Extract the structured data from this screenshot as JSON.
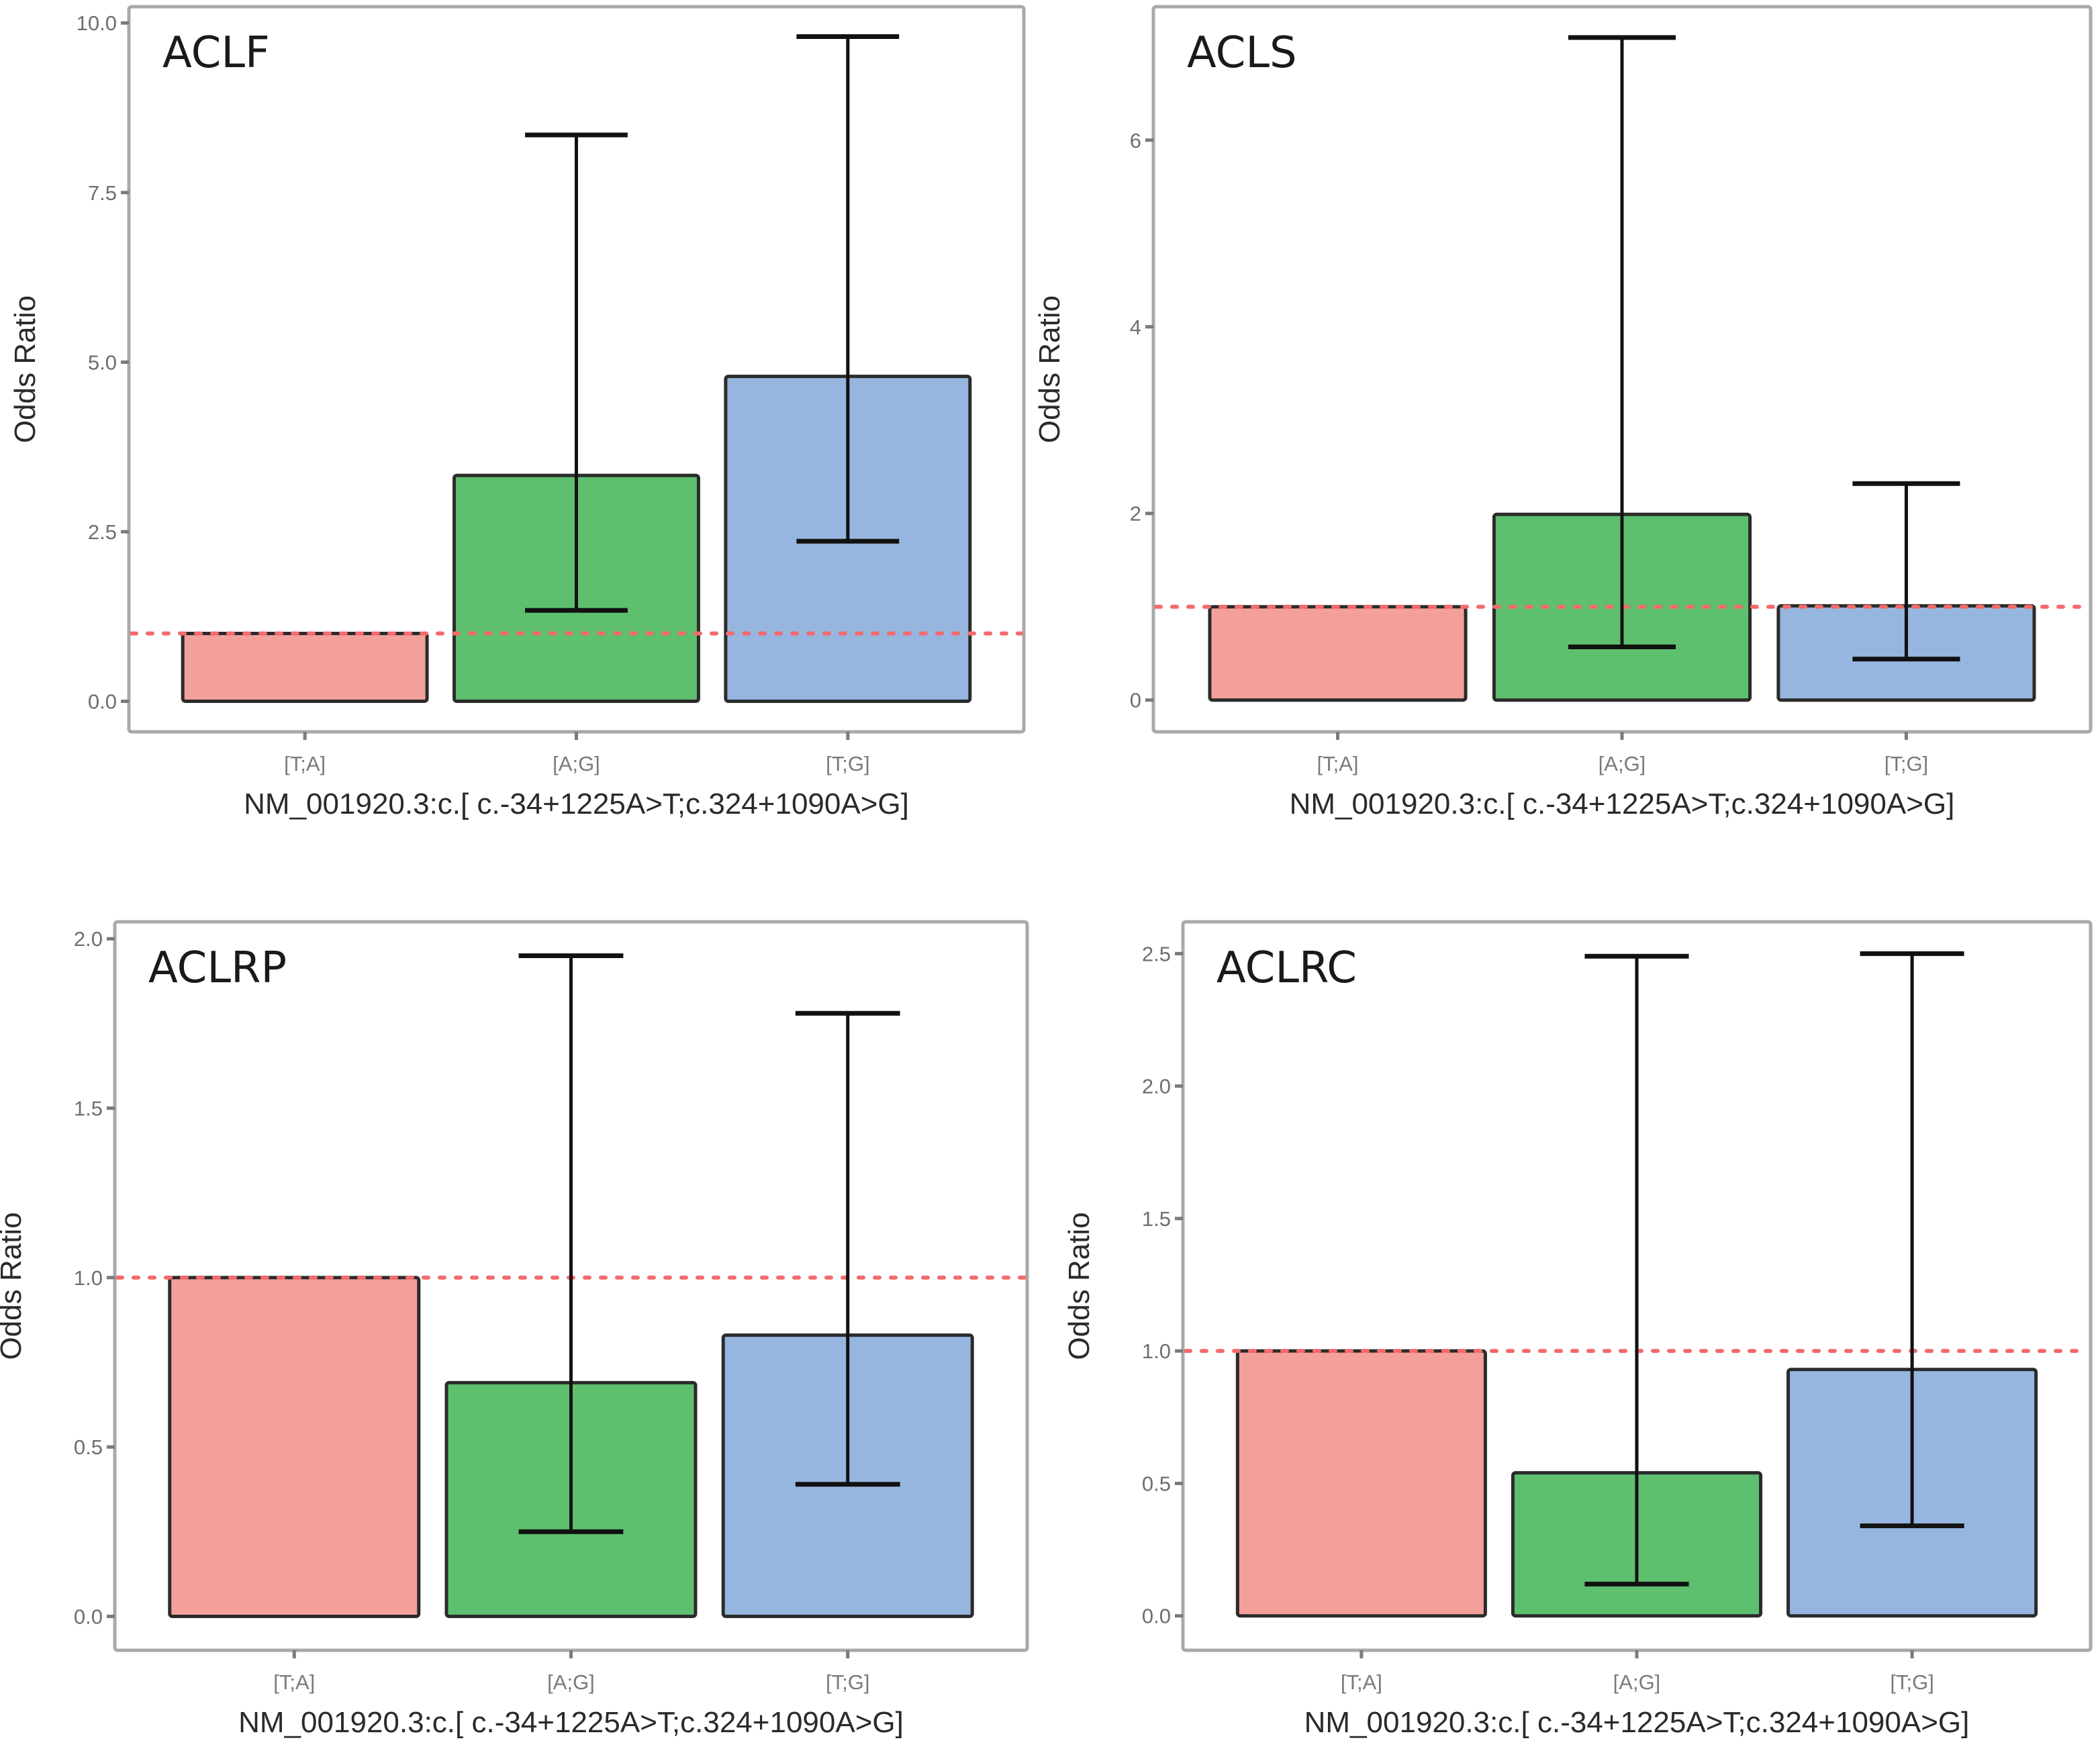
{
  "figure": {
    "reference_line_value": 1.0,
    "reference_line_color": "#f46b6b",
    "category_colors": [
      "#f4a09a",
      "#5ebf6f",
      "#96b6e0"
    ]
  },
  "chart_data": [
    {
      "type": "bar",
      "title": "ACLF",
      "xlabel": "NM_001920.3:c.[ c.-34+1225A>T;c.324+1090A>G]",
      "ylabel": "Odds Ratio",
      "categories": [
        "[T;A]",
        "[A;G]",
        "[T;G]"
      ],
      "values": [
        1.0,
        3.33,
        4.79
      ],
      "ci_lower": [
        null,
        1.34,
        2.36
      ],
      "ci_upper": [
        null,
        8.35,
        9.8
      ],
      "yticks": [
        0.0,
        2.5,
        5.0,
        7.5,
        10.0
      ],
      "ytick_labels": [
        "0.0",
        "2.5",
        "5.0",
        "7.5",
        "10.0"
      ],
      "ylim": [
        -0.45,
        10.24
      ],
      "reference_line": 1.0,
      "grid": false
    },
    {
      "type": "bar",
      "title": "ACLS",
      "xlabel": "NM_001920.3:c.[ c.-34+1225A>T;c.324+1090A>G]",
      "ylabel": "Odds Ratio",
      "categories": [
        "[T;A]",
        "[A;G]",
        "[T;G]"
      ],
      "values": [
        1.0,
        1.99,
        1.01
      ],
      "ci_lower": [
        null,
        0.57,
        0.44
      ],
      "ci_upper": [
        null,
        7.1,
        2.32
      ],
      "yticks": [
        0,
        2,
        4,
        6
      ],
      "ytick_labels": [
        "0",
        "2",
        "4",
        "6"
      ],
      "ylim": [
        -0.34,
        7.43
      ],
      "reference_line": 1.0,
      "grid": false
    },
    {
      "type": "bar",
      "title": "ACLRP",
      "xlabel": "NM_001920.3:c.[ c.-34+1225A>T;c.324+1090A>G]",
      "ylabel": "Odds Ratio",
      "categories": [
        "[T;A]",
        "[A;G]",
        "[T;G]"
      ],
      "values": [
        1.0,
        0.69,
        0.83
      ],
      "ci_lower": [
        null,
        0.25,
        0.39
      ],
      "ci_upper": [
        null,
        1.95,
        1.78
      ],
      "yticks": [
        0.0,
        0.5,
        1.0,
        1.5,
        2.0
      ],
      "ytick_labels": [
        "0.0",
        "0.5",
        "1.0",
        "1.5",
        "2.0"
      ],
      "ylim": [
        -0.1,
        2.05
      ],
      "reference_line": 1.0,
      "grid": false
    },
    {
      "type": "bar",
      "title": "ACLRC",
      "xlabel": "NM_001920.3:c.[ c.-34+1225A>T;c.324+1090A>G]",
      "ylabel": "Odds Ratio",
      "categories": [
        "[T;A]",
        "[A;G]",
        "[T;G]"
      ],
      "values": [
        1.0,
        0.54,
        0.93
      ],
      "ci_lower": [
        null,
        0.12,
        0.34
      ],
      "ci_upper": [
        null,
        2.49,
        2.5
      ],
      "yticks": [
        0.0,
        0.5,
        1.0,
        1.5,
        2.0,
        2.5
      ],
      "ytick_labels": [
        "0.0",
        "0.5",
        "1.0",
        "1.5",
        "2.0",
        "2.5"
      ],
      "ylim": [
        -0.13,
        2.62
      ],
      "reference_line": 1.0,
      "grid": false
    }
  ]
}
